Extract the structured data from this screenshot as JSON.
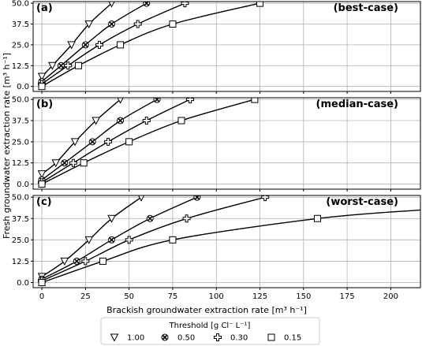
{
  "chart_data": {
    "type": "line",
    "xlabel": "Brackish groundwater extraction rate [m³ h⁻¹]",
    "ylabel": "Fresh groundwater extraction rate [m³ h⁻¹]",
    "xlim": [
      -5,
      217
    ],
    "ylim": [
      -3,
      51
    ],
    "xticks": [
      "0",
      "25",
      "50",
      "75",
      "100",
      "125",
      "150",
      "175",
      "200"
    ],
    "xtick_values": [
      0,
      25,
      50,
      75,
      100,
      125,
      150,
      175,
      200
    ],
    "yticks": [
      "0.0",
      "12.5",
      "25.0",
      "37.5",
      "50.0"
    ],
    "ytick_values": [
      0,
      12.5,
      25,
      37.5,
      50
    ],
    "grid": true,
    "legend": {
      "placement": "bottom-center",
      "title": "Threshold [g Cl⁻ L⁻¹]",
      "entries": [
        {
          "label": "1.00",
          "marker": "triangle-down"
        },
        {
          "label": "0.50",
          "marker": "x-circle"
        },
        {
          "label": "0.30",
          "marker": "plus"
        },
        {
          "label": "0.15",
          "marker": "square"
        }
      ]
    },
    "panels": [
      {
        "tag": "(a)",
        "case": "(best-case)",
        "series": [
          {
            "threshold": "1.00",
            "marker": "triangle-down",
            "x": [
              0,
              6,
              17,
              27,
              40
            ],
            "y": [
              6,
              12.5,
              25,
              37.5,
              50
            ]
          },
          {
            "threshold": "0.50",
            "marker": "x-circle",
            "x": [
              0,
              11,
              25,
              40,
              60
            ],
            "y": [
              3,
              12.5,
              25,
              37.5,
              50
            ]
          },
          {
            "threshold": "0.30",
            "marker": "plus",
            "x": [
              0,
              15,
              33,
              55,
              82
            ],
            "y": [
              1.5,
              12.5,
              25,
              37.5,
              50
            ]
          },
          {
            "threshold": "0.15",
            "marker": "square",
            "x": [
              0,
              21,
              45,
              75,
              125
            ],
            "y": [
              0,
              12.5,
              25,
              37.5,
              50
            ]
          }
        ]
      },
      {
        "tag": "(b)",
        "case": "(median-case)",
        "series": [
          {
            "threshold": "1.00",
            "marker": "triangle-down",
            "x": [
              0,
              8,
              19,
              31,
              45
            ],
            "y": [
              6,
              12.5,
              25,
              37.5,
              50
            ]
          },
          {
            "threshold": "0.50",
            "marker": "x-circle",
            "x": [
              0,
              13,
              29,
              45,
              66
            ],
            "y": [
              2.5,
              12.5,
              25,
              37.5,
              50
            ]
          },
          {
            "threshold": "0.30",
            "marker": "plus",
            "x": [
              0,
              18,
              38,
              60,
              85
            ],
            "y": [
              1,
              12.5,
              25,
              37.5,
              50
            ]
          },
          {
            "threshold": "0.15",
            "marker": "square",
            "x": [
              0,
              24,
              50,
              80,
              122
            ],
            "y": [
              0,
              12.5,
              25,
              37.5,
              50
            ]
          }
        ]
      },
      {
        "tag": "(c)",
        "case": "(worst-case)",
        "series": [
          {
            "threshold": "1.00",
            "marker": "triangle-down",
            "x": [
              0,
              13,
              27,
              40,
              57
            ],
            "y": [
              3.5,
              12.5,
              25,
              37.5,
              50
            ]
          },
          {
            "threshold": "0.50",
            "marker": "x-circle",
            "x": [
              0,
              20,
              40,
              62,
              89
            ],
            "y": [
              2,
              12.5,
              25,
              37.5,
              50
            ]
          },
          {
            "threshold": "0.30",
            "marker": "plus",
            "x": [
              0,
              25,
              50,
              83,
              128
            ],
            "y": [
              1,
              12.5,
              25,
              37.5,
              50
            ]
          },
          {
            "threshold": "0.15",
            "marker": "square",
            "x": [
              0,
              35,
              75,
              158,
              217
            ],
            "y": [
              0,
              12.5,
              25,
              37.5,
              42.5
            ]
          }
        ]
      }
    ]
  }
}
